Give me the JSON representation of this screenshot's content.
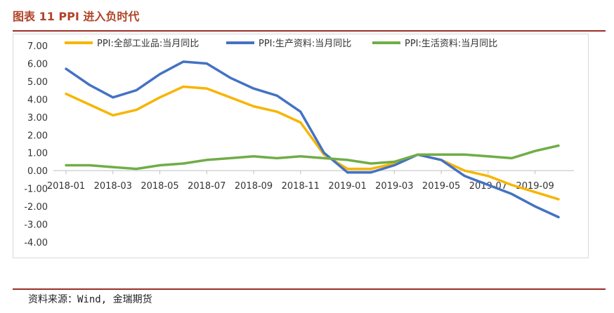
{
  "figure": {
    "title": "图表 11  PPI 进入负时代",
    "source": "资料来源：Wind, 金瑞期货"
  },
  "chart_data": {
    "type": "line",
    "x": [
      "2018-01",
      "2018-02",
      "2018-03",
      "2018-04",
      "2018-05",
      "2018-06",
      "2018-07",
      "2018-08",
      "2018-09",
      "2018-10",
      "2018-11",
      "2018-12",
      "2019-01",
      "2019-02",
      "2019-03",
      "2019-04",
      "2019-05",
      "2019-06",
      "2019-07",
      "2019-08",
      "2019-09",
      "2019-10"
    ],
    "xticks": [
      "2018-01",
      "2018-03",
      "2018-05",
      "2018-07",
      "2018-09",
      "2018-11",
      "2019-01",
      "2019-03",
      "2019-05",
      "2019-07",
      "2019-09"
    ],
    "yticks": [
      "7.00",
      "6.00",
      "5.00",
      "4.00",
      "3.00",
      "2.00",
      "1.00",
      "0.00",
      "-1.00",
      "-2.00",
      "-3.00",
      "-4.00"
    ],
    "ylim": [
      -4,
      7
    ],
    "legend_position": "top",
    "grid": false,
    "series": [
      {
        "name": "PPI:全部工业品:当月同比",
        "color": "#f7b500",
        "values": [
          4.3,
          3.7,
          3.1,
          3.4,
          4.1,
          4.7,
          4.6,
          4.1,
          3.6,
          3.3,
          2.7,
          0.9,
          0.1,
          0.1,
          0.4,
          0.9,
          0.6,
          0.0,
          -0.3,
          -0.8,
          -1.2,
          -1.6
        ]
      },
      {
        "name": "PPI:生产资料:当月同比",
        "color": "#4472c4",
        "values": [
          5.7,
          4.8,
          4.1,
          4.5,
          5.4,
          6.1,
          6.0,
          5.2,
          4.6,
          4.2,
          3.3,
          1.0,
          -0.1,
          -0.1,
          0.3,
          0.9,
          0.6,
          -0.3,
          -0.8,
          -1.3,
          -2.0,
          -2.6
        ]
      },
      {
        "name": "PPI:生活资料:当月同比",
        "color": "#70ad47",
        "values": [
          0.3,
          0.3,
          0.2,
          0.1,
          0.3,
          0.4,
          0.6,
          0.7,
          0.8,
          0.7,
          0.8,
          0.7,
          0.6,
          0.4,
          0.5,
          0.9,
          0.9,
          0.9,
          0.8,
          0.7,
          1.1,
          1.4
        ]
      }
    ]
  }
}
